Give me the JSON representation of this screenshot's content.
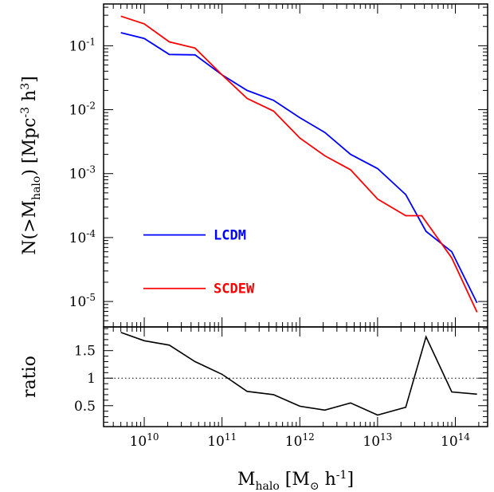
{
  "chart_data": [
    {
      "type": "line",
      "panel": "top",
      "scale": {
        "x": "log",
        "y": "log"
      },
      "xlim": [
        3000000000.0,
        260000000000000.0
      ],
      "ylim": [
        4e-06,
        0.45
      ],
      "ylabel": {
        "pre": "N(>M",
        "sub": "halo",
        "post": ")  [Mpc",
        "sup": "-3",
        "tail": "  h",
        "sup2": "3",
        "close": "]"
      },
      "yticks": [
        {
          "value": 1e-05,
          "base": "10",
          "exp": "-5"
        },
        {
          "value": 0.0001,
          "base": "10",
          "exp": "-4"
        },
        {
          "value": 0.001,
          "base": "10",
          "exp": "-3"
        },
        {
          "value": 0.01,
          "base": "10",
          "exp": "-2"
        },
        {
          "value": 0.1,
          "base": "10",
          "exp": "-1"
        }
      ],
      "legend": {
        "location": "lower-left"
      },
      "series": [
        {
          "name": "LCDM",
          "color": "#0000ff",
          "x": [
            5000000000.0,
            10000000000.0,
            21000000000.0,
            45000000000.0,
            100000000000.0,
            210000000000.0,
            460000000000.0,
            1000000000000.0,
            2100000000000.0,
            4500000000000.0,
            10000000000000.0,
            23000000000000.0,
            42000000000000.0,
            90000000000000.0,
            190000000000000.0
          ],
          "y": [
            0.16,
            0.13,
            0.073,
            0.072,
            0.035,
            0.02,
            0.014,
            0.0075,
            0.0044,
            0.002,
            0.0012,
            0.00047,
            0.000125,
            6e-05,
            9.5e-06
          ]
        },
        {
          "name": "SCDEW",
          "color": "#ff0000",
          "x": [
            5000000000.0,
            10000000000.0,
            21000000000.0,
            45000000000.0,
            100000000000.0,
            210000000000.0,
            460000000000.0,
            1000000000000.0,
            2100000000000.0,
            4500000000000.0,
            10000000000000.0,
            23000000000000.0,
            37000000000000.0,
            90000000000000.0,
            190000000000000.0
          ],
          "y": [
            0.29,
            0.22,
            0.115,
            0.092,
            0.035,
            0.015,
            0.0095,
            0.0036,
            0.0019,
            0.00115,
            0.0004,
            0.00022,
            0.00022,
            4.8e-05,
            6.8e-06
          ]
        }
      ]
    },
    {
      "type": "line",
      "panel": "bottom",
      "scale": {
        "x": "log",
        "y": "linear"
      },
      "xlim": [
        3000000000.0,
        260000000000000.0
      ],
      "ylim": [
        0.12,
        1.93
      ],
      "ylabel": "ratio",
      "yticks": [
        {
          "value": 0.5,
          "label": "0.5"
        },
        {
          "value": 1,
          "label": "1"
        },
        {
          "value": 1.5,
          "label": "1.5"
        }
      ],
      "reference_line": {
        "y": 1,
        "style": "dotted"
      },
      "xticks": [
        {
          "value": 10000000000.0,
          "base": "10",
          "exp": "10"
        },
        {
          "value": 100000000000.0,
          "base": "10",
          "exp": "11"
        },
        {
          "value": 1000000000000.0,
          "base": "10",
          "exp": "12"
        },
        {
          "value": 10000000000000.0,
          "base": "10",
          "exp": "13"
        },
        {
          "value": 100000000000000.0,
          "base": "10",
          "exp": "14"
        }
      ],
      "xlabel": {
        "pre": "M",
        "sub": "halo",
        "mid": "  [M",
        "sub2": "⊙",
        "post": "  h",
        "sup": "-1",
        "close": "]"
      },
      "series": [
        {
          "name": "ratio",
          "color": "#000000",
          "x": [
            5000000000.0,
            10000000000.0,
            21000000000.0,
            45000000000.0,
            100000000000.0,
            210000000000.0,
            460000000000.0,
            1000000000000.0,
            2100000000000.0,
            4500000000000.0,
            10000000000000.0,
            23000000000000.0,
            42000000000000.0,
            90000000000000.0,
            190000000000000.0
          ],
          "y": [
            1.83,
            1.68,
            1.6,
            1.3,
            1.07,
            0.76,
            0.7,
            0.49,
            0.42,
            0.55,
            0.33,
            0.47,
            1.75,
            0.75,
            0.71
          ]
        }
      ]
    }
  ]
}
